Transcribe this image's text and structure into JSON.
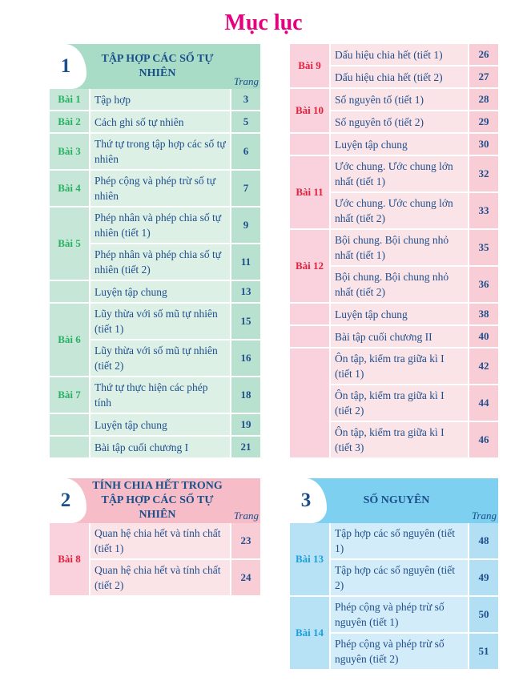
{
  "page_title": "Mục lục",
  "blocks": [
    {
      "id": "chapter-1",
      "theme": "green",
      "num": "1",
      "title": "TẬP HỢP CÁC SỐ TỰ NHIÊN",
      "trang": "Trang",
      "groups": [
        {
          "lesson": "Bài 1",
          "items": [
            {
              "title": "Tập hợp",
              "page": "3"
            }
          ]
        },
        {
          "lesson": "Bài 2",
          "items": [
            {
              "title": "Cách ghi số tự nhiên",
              "page": "5"
            }
          ]
        },
        {
          "lesson": "Bài 3",
          "items": [
            {
              "title": "Thứ tự trong tập hợp các số tự nhiên",
              "page": "6"
            }
          ]
        },
        {
          "lesson": "Bài 4",
          "items": [
            {
              "title": "Phép cộng và phép trừ số tự nhiên",
              "page": "7"
            }
          ]
        },
        {
          "lesson": "Bài 5",
          "items": [
            {
              "title": "Phép nhân và phép chia số tự nhiên (tiết 1)",
              "page": "9"
            },
            {
              "title": "Phép nhân và phép chia số tự nhiên (tiết 2)",
              "page": "11"
            }
          ]
        },
        {
          "lesson": "",
          "items": [
            {
              "title": "Luyện tập chung",
              "page": "13"
            }
          ]
        },
        {
          "lesson": "Bài 6",
          "items": [
            {
              "title": "Lũy thừa với số mũ tự nhiên (tiết 1)",
              "page": "15"
            },
            {
              "title": "Lũy thừa với số mũ tự nhiên (tiết 2)",
              "page": "16"
            }
          ]
        },
        {
          "lesson": "Bài 7",
          "items": [
            {
              "title": "Thứ tự thực hiện các phép tính",
              "page": "18"
            }
          ]
        },
        {
          "lesson": "",
          "items": [
            {
              "title": "Luyện tập chung",
              "page": "19"
            }
          ]
        },
        {
          "lesson": "",
          "items": [
            {
              "title": "Bài tập cuối chương I",
              "page": "21"
            }
          ]
        }
      ]
    },
    {
      "id": "chapter-2",
      "theme": "pink",
      "num": "2",
      "title": "TÍNH CHIA HẾT TRONG TẬP HỢP CÁC SỐ TỰ NHIÊN",
      "trang": "Trang",
      "groups": [
        {
          "lesson": "Bài 8",
          "items": [
            {
              "title": "Quan hệ chia hết và tính chất (tiết 1)",
              "page": "23"
            },
            {
              "title": "Quan hệ chia hết và tính chất (tiết 2)",
              "page": "24"
            }
          ]
        }
      ]
    },
    {
      "id": "chapter-2-cont",
      "theme": "pink",
      "groups": [
        {
          "lesson": "Bài 9",
          "items": [
            {
              "title": "Dấu hiệu chia hết (tiết 1)",
              "page": "26"
            },
            {
              "title": "Dấu hiệu chia hết (tiết 2)",
              "page": "27"
            }
          ]
        },
        {
          "lesson": "Bài 10",
          "items": [
            {
              "title": "Số nguyên tố (tiết 1)",
              "page": "28"
            },
            {
              "title": "Số nguyên tố (tiết 2)",
              "page": "29"
            }
          ]
        },
        {
          "lesson": "",
          "items": [
            {
              "title": "Luyện tập chung",
              "page": "30"
            }
          ]
        },
        {
          "lesson": "Bài 11",
          "items": [
            {
              "title": "Ước chung. Ước chung lớn nhất (tiết 1)",
              "page": "32"
            },
            {
              "title": "Ước chung. Ước chung lớn nhất (tiết 2)",
              "page": "33"
            }
          ]
        },
        {
          "lesson": "Bài 12",
          "items": [
            {
              "title": "Bội chung. Bội chung nhỏ nhất (tiết 1)",
              "page": "35"
            },
            {
              "title": "Bội chung. Bội chung nhỏ nhất (tiết 2)",
              "page": "36"
            }
          ]
        },
        {
          "lesson": "",
          "items": [
            {
              "title": "Luyện tập chung",
              "page": "38"
            }
          ]
        },
        {
          "lesson": "",
          "items": [
            {
              "title": "Bài tập cuối chương II",
              "page": "40"
            }
          ]
        },
        {
          "lesson": "",
          "items": [
            {
              "title": "Ôn tập, kiểm tra giữa kì I (tiết 1)",
              "page": "42"
            },
            {
              "title": "Ôn tập, kiểm tra giữa kì I (tiết 2)",
              "page": "44"
            },
            {
              "title": "Ôn tập, kiểm tra giữa kì I (tiết 3)",
              "page": "46"
            }
          ]
        }
      ]
    },
    {
      "id": "chapter-3",
      "theme": "blue",
      "num": "3",
      "title": "SỐ NGUYÊN",
      "trang": "Trang",
      "groups": [
        {
          "lesson": "Bài 13",
          "items": [
            {
              "title": "Tập hợp các số nguyên (tiết 1)",
              "page": "48"
            },
            {
              "title": "Tập hợp các số nguyên (tiết 2)",
              "page": "49"
            }
          ]
        },
        {
          "lesson": "Bài 14",
          "items": [
            {
              "title": "Phép cộng và phép trừ số nguyên (tiết 1)",
              "page": "50"
            },
            {
              "title": "Phép cộng và phép trừ số nguyên (tiết 2)",
              "page": "51"
            }
          ]
        }
      ]
    }
  ]
}
